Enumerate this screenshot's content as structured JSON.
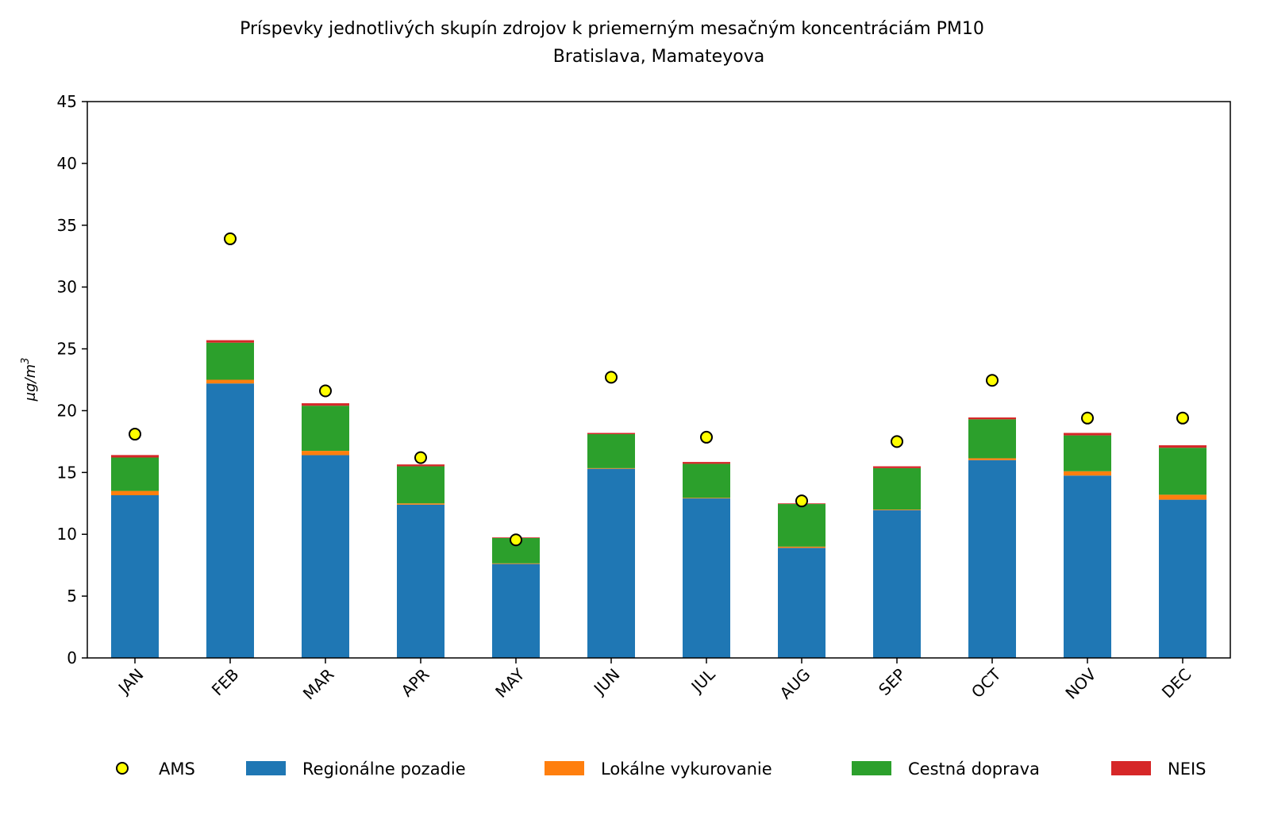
{
  "chart_data": {
    "type": "bar",
    "stacked": true,
    "title": "Príspevky jednotlivých skupín zdrojov k priemerným mesačným koncentráciám PM10",
    "subtitle": "Bratislava, Mamateyova",
    "xlabel": "",
    "ylabel": "μg/m3",
    "ylim": [
      0,
      45
    ],
    "yticks": [
      0,
      5,
      10,
      15,
      20,
      25,
      30,
      35,
      40,
      45
    ],
    "grid": false,
    "legend_position": "bottom",
    "categories": [
      "JAN",
      "FEB",
      "MAR",
      "APR",
      "MAY",
      "JUN",
      "JUL",
      "AUG",
      "SEP",
      "OCT",
      "NOV",
      "DEC"
    ],
    "series": [
      {
        "name": "Regionálne pozadie",
        "color": "#1f77b4",
        "values": [
          13.16,
          22.2,
          16.4,
          12.4,
          7.6,
          15.3,
          12.9,
          8.9,
          11.95,
          16.0,
          14.75,
          12.8
        ]
      },
      {
        "name": "Lokálne vykurovanie",
        "color": "#ff7f0e",
        "values": [
          0.35,
          0.3,
          0.35,
          0.1,
          0.05,
          0.05,
          0.05,
          0.1,
          0.05,
          0.15,
          0.35,
          0.4
        ]
      },
      {
        "name": "Cestná doprava",
        "color": "#2ca02c",
        "values": [
          2.7,
          3.0,
          3.65,
          3.0,
          2.05,
          2.75,
          2.75,
          3.45,
          3.35,
          3.15,
          2.9,
          3.8
        ]
      },
      {
        "name": "NEIS",
        "color": "#d62728",
        "values": [
          0.2,
          0.2,
          0.2,
          0.15,
          0.05,
          0.1,
          0.15,
          0.05,
          0.15,
          0.15,
          0.2,
          0.2
        ]
      }
    ],
    "markers": {
      "name": "AMS",
      "color": "#ffff00",
      "values": [
        18.1,
        33.9,
        21.6,
        16.2,
        9.55,
        22.7,
        17.85,
        12.7,
        17.5,
        22.45,
        19.4,
        19.4
      ]
    }
  }
}
